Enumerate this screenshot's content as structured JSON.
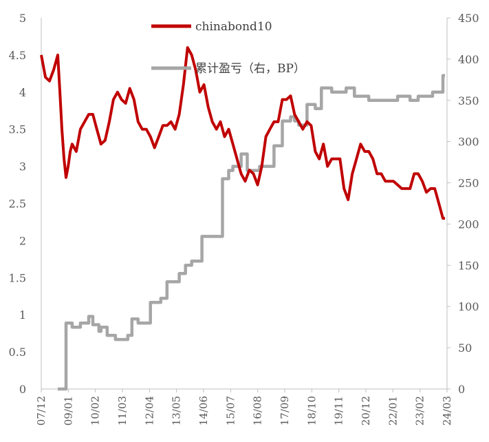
{
  "chart_data": {
    "type": "line",
    "left_axis": {
      "ylim": [
        0,
        5
      ],
      "ticks": [
        "0",
        "0.5",
        "1",
        "1.5",
        "2",
        "2.5",
        "3",
        "3.5",
        "4",
        "4.5",
        "5"
      ]
    },
    "right_axis": {
      "ylim": [
        0,
        450
      ],
      "ticks": [
        "0",
        "50",
        "100",
        "150",
        "200",
        "250",
        "300",
        "350",
        "400",
        "450"
      ]
    },
    "x_ticks": [
      "07/12",
      "09/01",
      "10/02",
      "11/03",
      "12/04",
      "13/05",
      "14/06",
      "15/07",
      "16/08",
      "17/09",
      "18/10",
      "19/11",
      "20/12",
      "22/01",
      "23/02",
      "24/03"
    ],
    "legend_position": "top-center",
    "series": [
      {
        "name": "chinabond10",
        "color": "#c00000",
        "axis": "left",
        "x": [
          "2007-12",
          "2008-02",
          "2008-04",
          "2008-06",
          "2008-08",
          "2008-09",
          "2008-10",
          "2008-11",
          "2008-12",
          "2009-01",
          "2009-02",
          "2009-03",
          "2009-05",
          "2009-07",
          "2009-09",
          "2009-11",
          "2010-01",
          "2010-03",
          "2010-05",
          "2010-07",
          "2010-09",
          "2010-11",
          "2011-01",
          "2011-03",
          "2011-05",
          "2011-07",
          "2011-09",
          "2011-11",
          "2012-01",
          "2012-03",
          "2012-05",
          "2012-07",
          "2012-09",
          "2012-11",
          "2013-01",
          "2013-03",
          "2013-05",
          "2013-07",
          "2013-09",
          "2013-11",
          "2014-01",
          "2014-03",
          "2014-05",
          "2014-07",
          "2014-09",
          "2014-11",
          "2015-01",
          "2015-03",
          "2015-05",
          "2015-07",
          "2015-09",
          "2015-11",
          "2016-01",
          "2016-03",
          "2016-05",
          "2016-07",
          "2016-09",
          "2016-11",
          "2017-01",
          "2017-03",
          "2017-05",
          "2017-07",
          "2017-09",
          "2017-11",
          "2018-01",
          "2018-03",
          "2018-05",
          "2018-07",
          "2018-09",
          "2018-11",
          "2019-01",
          "2019-03",
          "2019-05",
          "2019-07",
          "2019-09",
          "2019-11",
          "2020-01",
          "2020-03",
          "2020-05",
          "2020-07",
          "2020-09",
          "2020-11",
          "2021-01",
          "2021-03",
          "2021-05",
          "2021-07",
          "2021-09",
          "2021-11",
          "2022-01",
          "2022-03",
          "2022-05",
          "2022-07",
          "2022-09",
          "2022-11",
          "2023-01",
          "2023-03",
          "2023-05",
          "2023-07",
          "2023-09",
          "2023-11",
          "2024-01",
          "2024-03",
          "2024-04"
        ],
        "values": [
          4.5,
          4.2,
          4.15,
          4.3,
          4.5,
          4.0,
          3.5,
          3.1,
          2.85,
          3.0,
          3.2,
          3.3,
          3.2,
          3.5,
          3.6,
          3.7,
          3.7,
          3.5,
          3.3,
          3.35,
          3.6,
          3.9,
          4.0,
          3.9,
          3.85,
          4.05,
          3.9,
          3.6,
          3.5,
          3.5,
          3.4,
          3.25,
          3.4,
          3.55,
          3.55,
          3.6,
          3.5,
          3.7,
          4.1,
          4.6,
          4.5,
          4.3,
          4.0,
          4.1,
          3.8,
          3.6,
          3.5,
          3.6,
          3.4,
          3.5,
          3.3,
          3.1,
          2.9,
          2.8,
          2.95,
          2.9,
          2.75,
          3.0,
          3.4,
          3.5,
          3.6,
          3.6,
          3.9,
          3.9,
          3.95,
          3.7,
          3.6,
          3.5,
          3.6,
          3.55,
          3.2,
          3.1,
          3.3,
          3.0,
          3.1,
          3.1,
          3.1,
          2.7,
          2.55,
          2.9,
          3.1,
          3.3,
          3.2,
          3.2,
          3.1,
          2.9,
          2.9,
          2.8,
          2.8,
          2.8,
          2.75,
          2.7,
          2.7,
          2.7,
          2.9,
          2.9,
          2.8,
          2.65,
          2.7,
          2.7,
          2.5,
          2.3,
          2.3
        ]
      },
      {
        "name": "累计盈亏（右，BP）",
        "color": "#a6a6a6",
        "axis": "right",
        "x": [
          "2008-08",
          "2008-12",
          "2008-12",
          "2009-03",
          "2009-03",
          "2009-07",
          "2009-07",
          "2009-11",
          "2009-11",
          "2010-01",
          "2010-01",
          "2010-04",
          "2010-04",
          "2010-05",
          "2010-05",
          "2010-08",
          "2010-08",
          "2010-12",
          "2010-12",
          "2011-06",
          "2011-06",
          "2011-08",
          "2011-08",
          "2011-11",
          "2011-11",
          "2012-05",
          "2012-05",
          "2012-10",
          "2012-10",
          "2013-01",
          "2013-01",
          "2013-07",
          "2013-07",
          "2013-10",
          "2013-10",
          "2014-01",
          "2014-01",
          "2014-06",
          "2014-06",
          "2015-04",
          "2015-04",
          "2015-07",
          "2015-07",
          "2015-09",
          "2015-09",
          "2016-01",
          "2016-01",
          "2016-04",
          "2016-04",
          "2016-10",
          "2016-10",
          "2017-02",
          "2017-02",
          "2017-05",
          "2017-05",
          "2017-09",
          "2017-09",
          "2018-01",
          "2018-01",
          "2018-03",
          "2018-03",
          "2018-05",
          "2018-05",
          "2018-09",
          "2018-09",
          "2019-01",
          "2019-01",
          "2019-04",
          "2019-04",
          "2019-09",
          "2019-09",
          "2019-11",
          "2019-11",
          "2020-04",
          "2020-04",
          "2020-08",
          "2020-08",
          "2021-03",
          "2021-03",
          "2021-07",
          "2021-07",
          "2022-05",
          "2022-05",
          "2022-11",
          "2022-11",
          "2023-03",
          "2023-03",
          "2023-10",
          "2023-10",
          "2024-03",
          "2024-03",
          "2024-04"
        ],
        "values": [
          0,
          0,
          80,
          80,
          75,
          75,
          80,
          80,
          88,
          88,
          78,
          78,
          70,
          70,
          75,
          75,
          65,
          65,
          60,
          60,
          65,
          65,
          85,
          85,
          80,
          80,
          105,
          105,
          110,
          110,
          130,
          130,
          140,
          140,
          150,
          150,
          155,
          155,
          185,
          185,
          255,
          255,
          265,
          265,
          270,
          270,
          285,
          285,
          265,
          265,
          270,
          270,
          270,
          270,
          295,
          295,
          325,
          325,
          330,
          330,
          325,
          325,
          320,
          320,
          345,
          345,
          340,
          340,
          365,
          365,
          360,
          360,
          360,
          360,
          365,
          365,
          355,
          355,
          350,
          350,
          350,
          350,
          355,
          355,
          350,
          350,
          355,
          355,
          360,
          360,
          380,
          380
        ]
      }
    ]
  }
}
